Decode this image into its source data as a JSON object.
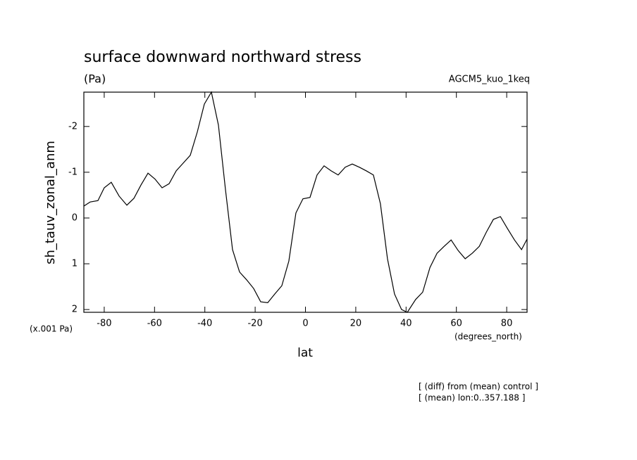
{
  "chart_data": {
    "type": "line",
    "title": "surface downward northward stress",
    "subtitle": "(Pa)",
    "model_label": "AGCM5_kuo_1keq",
    "ylabel": "sh_tauv_zonal_anm",
    "y_scale_note": "(x.001 Pa)",
    "x_unit": "(degrees_north)",
    "xlabel": "lat",
    "notes": [
      "[ (diff) from (mean) control ]",
      "[ (mean) lon:0..357.188 ]"
    ],
    "x": [
      -88.1,
      -85.6,
      -82.5,
      -80,
      -77.2,
      -74.1,
      -71.0,
      -68.2,
      -65.4,
      -62.6,
      -59.8,
      -57.0,
      -54.2,
      -51.4,
      -48.6,
      -45.8,
      -43.0,
      -40.2,
      -37.4,
      -34.6,
      -31.8,
      -29.0,
      -26.2,
      -23.4,
      -20.6,
      -17.8,
      -15.0,
      -12.2,
      -9.4,
      -6.6,
      -3.8,
      -1.0,
      1.8,
      4.6,
      7.4,
      10.2,
      13.0,
      15.8,
      18.6,
      21.4,
      24.2,
      27.0,
      29.8,
      32.6,
      35.4,
      38.2,
      40.5,
      43.8,
      46.6,
      49.5,
      52.3,
      55.1,
      57.9,
      60.7,
      63.5,
      66.3,
      69.1,
      71.9,
      74.7,
      77.5,
      80.3,
      83.1,
      85.9,
      88.1
    ],
    "series": [
      {
        "name": "sh_tauv_zonal_anm",
        "color": "#000000",
        "values": [
          -0.26,
          -0.35,
          -0.38,
          -0.66,
          -0.78,
          -0.48,
          -0.28,
          -0.43,
          -0.72,
          -0.98,
          -0.85,
          -0.66,
          -0.75,
          -1.03,
          -1.2,
          -1.37,
          -1.88,
          -2.49,
          -2.75,
          -2.03,
          -0.62,
          0.69,
          1.18,
          1.35,
          1.54,
          1.83,
          1.85,
          1.66,
          1.48,
          0.94,
          -0.11,
          -0.42,
          -0.45,
          -0.94,
          -1.14,
          -1.03,
          -0.94,
          -1.11,
          -1.18,
          -1.11,
          -1.03,
          -0.94,
          -0.31,
          0.89,
          1.66,
          2.0,
          2.06,
          1.78,
          1.62,
          1.08,
          0.77,
          0.62,
          0.48,
          0.71,
          0.89,
          0.77,
          0.62,
          0.31,
          0.03,
          -0.03,
          0.23,
          0.48,
          0.69,
          0.46
        ]
      }
    ],
    "xlim": [
      -88.1,
      88.1
    ],
    "xticks": [
      -80,
      -60,
      -40,
      -20,
      0,
      20,
      40,
      60,
      80
    ],
    "ylim": [
      2.06,
      -2.75
    ],
    "yticks": [
      -2,
      -1,
      0,
      1,
      2
    ],
    "grid": false
  }
}
